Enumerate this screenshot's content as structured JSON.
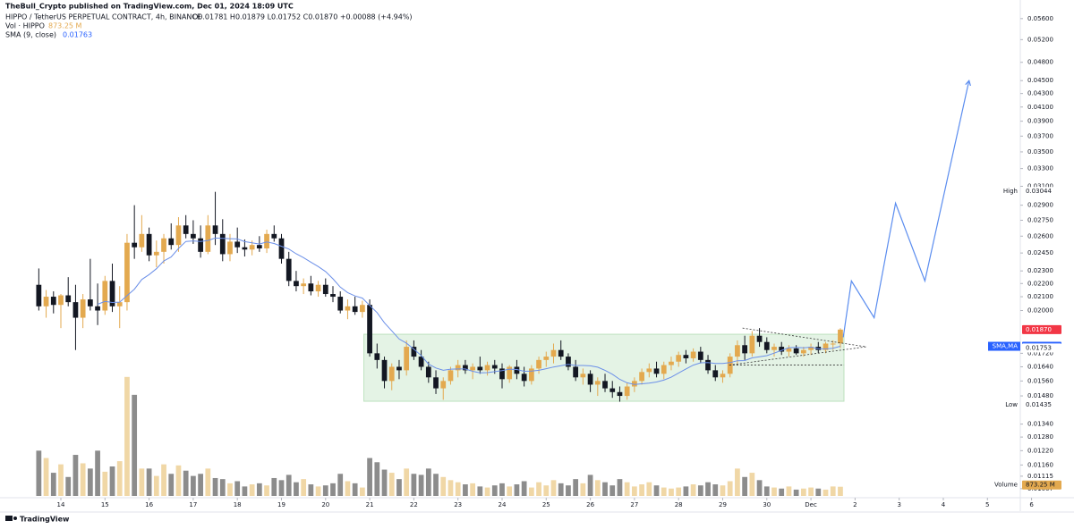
{
  "chart_data": {
    "type": "candlestick",
    "header": {
      "publisher": "TheBull_Crypto published on TradingView.com, Dec 01, 2024 18:09 UTC",
      "symbol": "HIPPO / TetherUS PERPETUAL CONTRACT, 4h, BINANCE",
      "ohlc_text": "O0.01781 H0.01879 L0.01752 C0.01870 +0.00088 (+4.94%)",
      "volume_name": "Vol · HIPPO",
      "volume_value": "873.25 M",
      "sma_name": "SMA (9, close)",
      "sma_value": "0.01763"
    },
    "footer": "TradingView",
    "log_scale": true,
    "ylim": [
      0.0104,
      0.0598
    ],
    "xlim": [
      -5.276,
      133.47
    ],
    "vlim": [
      0,
      14000
    ],
    "bull_color": "#e3a94f",
    "bear_color": "#131722",
    "bull_volume_color": "#f0d7a6",
    "bear_volume_color": "#8c8c8c",
    "sma_color": "#6b8fe8",
    "yticks": [
      {
        "value": 0.056,
        "label": "0.05600"
      },
      {
        "value": 0.052,
        "label": "0.05200"
      },
      {
        "value": 0.048,
        "label": "0.04800"
      },
      {
        "value": 0.045,
        "label": "0.04500"
      },
      {
        "value": 0.043,
        "label": "0.04300"
      },
      {
        "value": 0.041,
        "label": "0.04100"
      },
      {
        "value": 0.039,
        "label": "0.03900"
      },
      {
        "value": 0.037,
        "label": "0.03700"
      },
      {
        "value": 0.035,
        "label": "0.03500"
      },
      {
        "value": 0.033,
        "label": "0.03300"
      },
      {
        "value": 0.031,
        "label": "0.03100"
      },
      {
        "value": 0.029,
        "label": "0.02900"
      },
      {
        "value": 0.0275,
        "label": "0.02750"
      },
      {
        "value": 0.026,
        "label": "0.02600"
      },
      {
        "value": 0.0245,
        "label": "0.02450"
      },
      {
        "value": 0.023,
        "label": "0.02300"
      },
      {
        "value": 0.022,
        "label": "0.02200"
      },
      {
        "value": 0.021,
        "label": "0.02100"
      },
      {
        "value": 0.02,
        "label": "0.02000"
      },
      {
        "value": 0.0172,
        "label": "0.01720"
      },
      {
        "value": 0.0164,
        "label": "0.01640"
      },
      {
        "value": 0.0156,
        "label": "0.01560"
      },
      {
        "value": 0.0148,
        "label": "0.01480"
      },
      {
        "value": 0.0134,
        "label": "0.01340"
      },
      {
        "value": 0.0128,
        "label": "0.01280"
      },
      {
        "value": 0.0122,
        "label": "0.01220"
      },
      {
        "value": 0.0116,
        "label": "0.01160"
      },
      {
        "value": 0.01115,
        "label": "0.01115"
      },
      {
        "value": 0.01067,
        "label": "0.01067"
      }
    ],
    "xticks": [
      {
        "value": 3,
        "label": "14"
      },
      {
        "value": 9,
        "label": "15"
      },
      {
        "value": 15,
        "label": "16"
      },
      {
        "value": 21,
        "label": "17"
      },
      {
        "value": 27,
        "label": "18"
      },
      {
        "value": 33,
        "label": "19"
      },
      {
        "value": 39,
        "label": "20"
      },
      {
        "value": 45,
        "label": "21"
      },
      {
        "value": 51,
        "label": "22"
      },
      {
        "value": 57,
        "label": "23"
      },
      {
        "value": 63,
        "label": "24"
      },
      {
        "value": 69,
        "label": "25"
      },
      {
        "value": 75,
        "label": "26"
      },
      {
        "value": 81,
        "label": "27"
      },
      {
        "value": 87,
        "label": "28"
      },
      {
        "value": 93,
        "label": "29"
      },
      {
        "value": 99,
        "label": "30"
      },
      {
        "value": 105,
        "label": "Dec"
      },
      {
        "value": 111,
        "label": "2"
      },
      {
        "value": 117,
        "label": "3"
      },
      {
        "value": 123,
        "label": "4"
      },
      {
        "value": 129,
        "label": "5"
      },
      {
        "value": 135,
        "label": "6"
      }
    ],
    "price_labels": [
      {
        "name": "High",
        "value": 0.03044,
        "label": "0.03044",
        "color": "#ffffff",
        "text_color": "#131722"
      },
      {
        "value": 0.0187,
        "label": "0.01870",
        "color": "#f23645",
        "text_color": "#ffffff"
      },
      {
        "name": "SMA,MA",
        "value": 0.01763,
        "label": "0.01763",
        "color": "#2962ff",
        "text_color": "#ffffff"
      },
      {
        "value": 0.01753,
        "label": "0.01753",
        "color": "#ffffff",
        "text_color": "#131722"
      },
      {
        "name": "Low",
        "value": 0.01435,
        "label": "0.01435",
        "color": "#ffffff",
        "text_color": "#131722"
      }
    ],
    "volume_label": {
      "name": "Volume",
      "label": "873.25 M",
      "color": "#e3a94f"
    },
    "range_box": {
      "start": 44.2,
      "end": 109.5,
      "top": 0.0184,
      "bottom": 0.01452,
      "color": "#4caf50"
    },
    "dashed_lines": [
      [
        [
          95.7,
          0.0188
        ],
        [
          112.5,
          0.0176
        ]
      ],
      [
        [
          93.9,
          0.0165
        ],
        [
          112.5,
          0.0176
        ]
      ],
      [
        [
          93.9,
          0.0165
        ],
        [
          109.5,
          0.0165
        ]
      ]
    ],
    "projection": {
      "color": "#5b8def",
      "points": [
        [
          109.4,
          0.0182
        ],
        [
          110.5,
          0.0222
        ],
        [
          113.6,
          0.0195
        ],
        [
          116.5,
          0.0292
        ],
        [
          120.5,
          0.0222
        ],
        [
          126.5,
          0.045
        ]
      ]
    },
    "candles": [
      [
        0.0219,
        0.0232,
        0.02,
        0.0203
      ],
      [
        0.0203,
        0.0215,
        0.0195,
        0.021
      ],
      [
        0.021,
        0.0214,
        0.0198,
        0.0204
      ],
      [
        0.0204,
        0.0212,
        0.0188,
        0.0211
      ],
      [
        0.0211,
        0.0225,
        0.0203,
        0.0206
      ],
      [
        0.0206,
        0.0219,
        0.0174,
        0.0195
      ],
      [
        0.0195,
        0.0212,
        0.0188,
        0.0208
      ],
      [
        0.0208,
        0.024,
        0.02,
        0.0203
      ],
      [
        0.0203,
        0.022,
        0.019,
        0.02
      ],
      [
        0.02,
        0.0226,
        0.0197,
        0.0222
      ],
      [
        0.0222,
        0.0236,
        0.0199,
        0.0203
      ],
      [
        0.0203,
        0.0218,
        0.0188,
        0.0206
      ],
      [
        0.0206,
        0.0262,
        0.02,
        0.0254
      ],
      [
        0.0254,
        0.029,
        0.024,
        0.025
      ],
      [
        0.025,
        0.028,
        0.0246,
        0.0262
      ],
      [
        0.0262,
        0.0268,
        0.0238,
        0.0243
      ],
      [
        0.0243,
        0.0256,
        0.0233,
        0.0246
      ],
      [
        0.0246,
        0.0262,
        0.0236,
        0.0258
      ],
      [
        0.0258,
        0.0272,
        0.0248,
        0.0252
      ],
      [
        0.0252,
        0.0278,
        0.0246,
        0.027
      ],
      [
        0.027,
        0.028,
        0.0258,
        0.0262
      ],
      [
        0.0262,
        0.0275,
        0.0253,
        0.0258
      ],
      [
        0.0258,
        0.027,
        0.0241,
        0.0246
      ],
      [
        0.0246,
        0.028,
        0.0244,
        0.027
      ],
      [
        0.027,
        0.0304,
        0.0252,
        0.0262
      ],
      [
        0.0262,
        0.0276,
        0.0238,
        0.0244
      ],
      [
        0.0244,
        0.0262,
        0.0238,
        0.0255
      ],
      [
        0.0255,
        0.0268,
        0.0245,
        0.025
      ],
      [
        0.025,
        0.0257,
        0.0242,
        0.0248
      ],
      [
        0.0248,
        0.0256,
        0.0243,
        0.0252
      ],
      [
        0.0252,
        0.026,
        0.0246,
        0.0249
      ],
      [
        0.0249,
        0.0266,
        0.0245,
        0.0262
      ],
      [
        0.0262,
        0.027,
        0.0255,
        0.0258
      ],
      [
        0.0258,
        0.0262,
        0.0236,
        0.024
      ],
      [
        0.024,
        0.0246,
        0.0218,
        0.0222
      ],
      [
        0.0222,
        0.023,
        0.0214,
        0.0218
      ],
      [
        0.0218,
        0.0224,
        0.0212,
        0.022
      ],
      [
        0.022,
        0.0226,
        0.0211,
        0.0214
      ],
      [
        0.0214,
        0.0222,
        0.021,
        0.0219
      ],
      [
        0.0219,
        0.0224,
        0.021,
        0.0212
      ],
      [
        0.0212,
        0.0218,
        0.0206,
        0.021
      ],
      [
        0.021,
        0.0214,
        0.0198,
        0.02
      ],
      [
        0.02,
        0.0208,
        0.0194,
        0.0203
      ],
      [
        0.0203,
        0.021,
        0.0197,
        0.0199
      ],
      [
        0.0199,
        0.0207,
        0.0195,
        0.0204
      ],
      [
        0.0204,
        0.0208,
        0.017,
        0.0172
      ],
      [
        0.0172,
        0.0178,
        0.0163,
        0.0168
      ],
      [
        0.0168,
        0.017,
        0.0152,
        0.0156
      ],
      [
        0.0156,
        0.0166,
        0.0151,
        0.0164
      ],
      [
        0.0164,
        0.0168,
        0.0157,
        0.0162
      ],
      [
        0.0162,
        0.018,
        0.0159,
        0.0176
      ],
      [
        0.0176,
        0.018,
        0.0168,
        0.017
      ],
      [
        0.017,
        0.0174,
        0.0162,
        0.0164
      ],
      [
        0.0164,
        0.0167,
        0.0155,
        0.0158
      ],
      [
        0.0158,
        0.0162,
        0.0149,
        0.0152
      ],
      [
        0.0152,
        0.0158,
        0.0146,
        0.0156
      ],
      [
        0.0156,
        0.0164,
        0.0154,
        0.0162
      ],
      [
        0.0162,
        0.0168,
        0.0158,
        0.0165
      ],
      [
        0.0165,
        0.0168,
        0.016,
        0.0162
      ],
      [
        0.0162,
        0.0166,
        0.0157,
        0.0164
      ],
      [
        0.0164,
        0.017,
        0.016,
        0.0162
      ],
      [
        0.0162,
        0.0167,
        0.0159,
        0.0165
      ],
      [
        0.0165,
        0.0168,
        0.016,
        0.0163
      ],
      [
        0.0163,
        0.0166,
        0.0152,
        0.0157
      ],
      [
        0.0157,
        0.0165,
        0.0155,
        0.0164
      ],
      [
        0.0164,
        0.0168,
        0.0157,
        0.016
      ],
      [
        0.016,
        0.0164,
        0.0153,
        0.0156
      ],
      [
        0.0156,
        0.0165,
        0.0154,
        0.0163
      ],
      [
        0.0163,
        0.017,
        0.016,
        0.0168
      ],
      [
        0.0168,
        0.0173,
        0.0164,
        0.017
      ],
      [
        0.017,
        0.0178,
        0.0166,
        0.0174
      ],
      [
        0.0174,
        0.018,
        0.0168,
        0.017
      ],
      [
        0.017,
        0.0172,
        0.0162,
        0.0164
      ],
      [
        0.0164,
        0.0168,
        0.0156,
        0.0158
      ],
      [
        0.0158,
        0.0163,
        0.0154,
        0.016
      ],
      [
        0.016,
        0.0162,
        0.015,
        0.0154
      ],
      [
        0.0154,
        0.0158,
        0.0148,
        0.0156
      ],
      [
        0.0156,
        0.016,
        0.015,
        0.0152
      ],
      [
        0.0152,
        0.0156,
        0.0147,
        0.015
      ],
      [
        0.015,
        0.0153,
        0.0145,
        0.0148
      ],
      [
        0.0148,
        0.0155,
        0.0146,
        0.0153
      ],
      [
        0.0153,
        0.0158,
        0.015,
        0.0156
      ],
      [
        0.0156,
        0.0163,
        0.0154,
        0.0161
      ],
      [
        0.0161,
        0.0166,
        0.0158,
        0.0163
      ],
      [
        0.0163,
        0.0167,
        0.0158,
        0.016
      ],
      [
        0.016,
        0.0167,
        0.0157,
        0.0165
      ],
      [
        0.0165,
        0.017,
        0.0162,
        0.0167
      ],
      [
        0.0167,
        0.0173,
        0.0164,
        0.0171
      ],
      [
        0.0171,
        0.0174,
        0.0166,
        0.0169
      ],
      [
        0.0169,
        0.0175,
        0.0167,
        0.0173
      ],
      [
        0.0173,
        0.0176,
        0.0166,
        0.0168
      ],
      [
        0.0168,
        0.0171,
        0.016,
        0.0162
      ],
      [
        0.0162,
        0.0165,
        0.0156,
        0.0158
      ],
      [
        0.0158,
        0.0162,
        0.0155,
        0.016
      ],
      [
        0.016,
        0.0172,
        0.0158,
        0.017
      ],
      [
        0.017,
        0.018,
        0.0165,
        0.0177
      ],
      [
        0.0177,
        0.0183,
        0.0168,
        0.0172
      ],
      [
        0.0172,
        0.0186,
        0.017,
        0.0183
      ],
      [
        0.0183,
        0.0188,
        0.0176,
        0.0179
      ],
      [
        0.0179,
        0.0182,
        0.0172,
        0.0174
      ],
      [
        0.0174,
        0.0178,
        0.017,
        0.0176
      ],
      [
        0.0176,
        0.0179,
        0.0171,
        0.0173
      ],
      [
        0.0173,
        0.0177,
        0.017,
        0.0175
      ],
      [
        0.0175,
        0.0177,
        0.0171,
        0.0172
      ],
      [
        0.0172,
        0.0176,
        0.017,
        0.0174
      ],
      [
        0.0174,
        0.0178,
        0.0171,
        0.0176
      ],
      [
        0.0176,
        0.0179,
        0.0172,
        0.0174
      ],
      [
        0.0174,
        0.0179,
        0.0172,
        0.0178
      ],
      [
        0.0178,
        0.018,
        0.0174,
        0.0178
      ],
      [
        0.01781,
        0.01879,
        0.01752,
        0.0187
      ]
    ],
    "volume": [
      4300,
      3600,
      2200,
      3000,
      1800,
      3900,
      3100,
      2600,
      4300,
      2300,
      2800,
      3300,
      11300,
      9600,
      2600,
      2600,
      1900,
      3000,
      2100,
      2900,
      2400,
      1900,
      2100,
      2600,
      1700,
      1600,
      1200,
      1400,
      900,
      1100,
      1200,
      1000,
      1700,
      1500,
      2000,
      1300,
      1600,
      1100,
      900,
      1000,
      1200,
      2100,
      1400,
      1200,
      800,
      3600,
      3200,
      2500,
      2200,
      1600,
      2600,
      2100,
      2000,
      2600,
      2100,
      1800,
      1500,
      1300,
      1100,
      1200,
      900,
      800,
      1000,
      1200,
      900,
      1100,
      1400,
      800,
      1300,
      1000,
      1500,
      1200,
      1000,
      1600,
      1200,
      2000,
      1500,
      1300,
      1000,
      1600,
      1300,
      900,
      1100,
      1300,
      1000,
      800,
      700,
      800,
      900,
      1100,
      1000,
      1300,
      1100,
      1000,
      1400,
      2600,
      1800,
      2200,
      1500,
      900,
      800,
      700,
      900,
      600,
      700,
      800,
      700,
      600,
      900,
      873.25
    ]
  }
}
